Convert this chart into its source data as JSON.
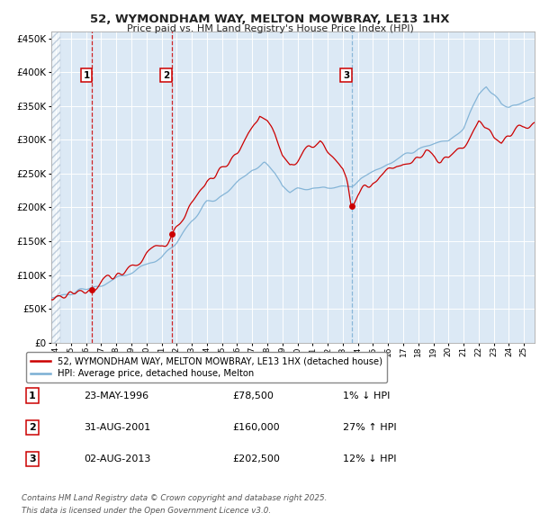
{
  "title_line1": "52, WYMONDHAM WAY, MELTON MOWBRAY, LE13 1HX",
  "title_line2": "Price paid vs. HM Land Registry's House Price Index (HPI)",
  "legend_house": "52, WYMONDHAM WAY, MELTON MOWBRAY, LE13 1HX (detached house)",
  "legend_hpi": "HPI: Average price, detached house, Melton",
  "sale1_label": "1",
  "sale1_date": "23-MAY-1996",
  "sale1_price": "£78,500",
  "sale1_hpi": "1% ↓ HPI",
  "sale1_year": 1996.39,
  "sale1_value": 78500,
  "sale2_label": "2",
  "sale2_date": "31-AUG-2001",
  "sale2_price": "£160,000",
  "sale2_hpi": "27% ↑ HPI",
  "sale2_year": 2001.66,
  "sale2_value": 160000,
  "sale3_label": "3",
  "sale3_date": "02-AUG-2013",
  "sale3_price": "£202,500",
  "sale3_hpi": "12% ↓ HPI",
  "sale3_year": 2013.58,
  "sale3_value": 202500,
  "footnote_line1": "Contains HM Land Registry data © Crown copyright and database right 2025.",
  "footnote_line2": "This data is licensed under the Open Government Licence v3.0.",
  "house_color": "#cc0000",
  "hpi_color": "#7bafd4",
  "marker_color": "#cc0000",
  "vline_red_color": "#cc0000",
  "vline_blue_color": "#7bafd4",
  "bg_color": "#dce9f5",
  "ylim": [
    0,
    460000
  ],
  "xlim_start": 1993.7,
  "xlim_end": 2025.7
}
